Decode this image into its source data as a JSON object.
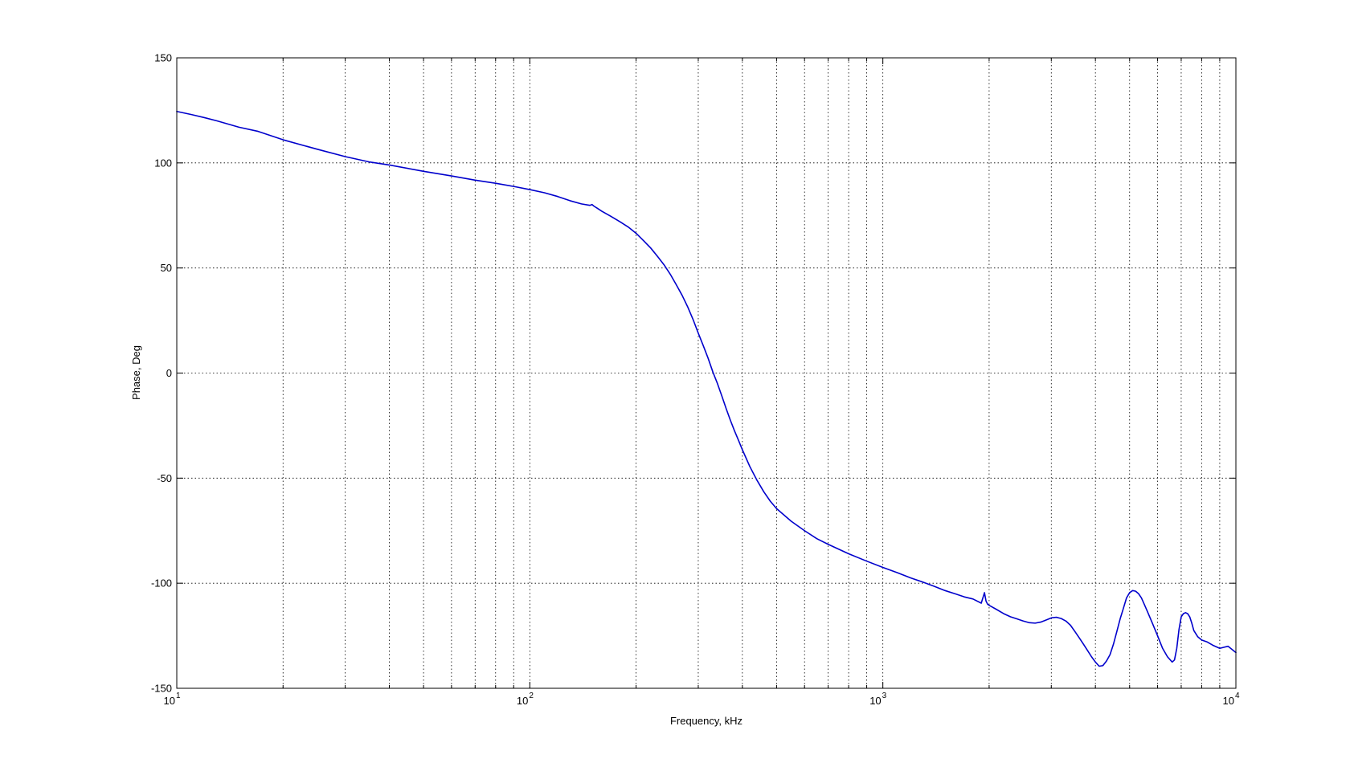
{
  "chart_data": {
    "type": "line",
    "title": "",
    "xlabel": "Frequency, kHz",
    "ylabel": "Phase, Deg",
    "xscale": "log",
    "xlim": [
      10,
      10000
    ],
    "ylim": [
      -150,
      150
    ],
    "grid": true,
    "grid_style": "dotted",
    "legend": "none",
    "x_ticks": [
      {
        "value": 10,
        "base": "10",
        "exp": "1"
      },
      {
        "value": 100,
        "base": "10",
        "exp": "2"
      },
      {
        "value": 1000,
        "base": "10",
        "exp": "3"
      },
      {
        "value": 10000,
        "base": "10",
        "exp": "4"
      }
    ],
    "y_ticks": [
      {
        "value": 150,
        "label": "150"
      },
      {
        "value": 100,
        "label": "100"
      },
      {
        "value": 50,
        "label": "50"
      },
      {
        "value": 0,
        "label": "0"
      },
      {
        "value": -50,
        "label": "-50"
      },
      {
        "value": -100,
        "label": "-100"
      },
      {
        "value": -150,
        "label": "-150"
      }
    ],
    "series": [
      {
        "color": "#0000cc",
        "x": [
          10,
          11,
          12,
          13,
          15,
          17,
          20,
          25,
          30,
          35,
          40,
          50,
          60,
          70,
          80,
          90,
          100,
          110,
          120,
          130,
          140,
          148,
          150,
          152,
          155,
          160,
          170,
          180,
          190,
          200,
          210,
          220,
          230,
          240,
          250,
          260,
          270,
          280,
          290,
          300,
          310,
          320,
          330,
          340,
          350,
          360,
          370,
          380,
          390,
          400,
          420,
          440,
          460,
          480,
          500,
          550,
          600,
          650,
          700,
          800,
          900,
          1000,
          1100,
          1200,
          1300,
          1400,
          1500,
          1600,
          1700,
          1800,
          1900,
          1940,
          1960,
          1980,
          2000,
          2100,
          2200,
          2300,
          2400,
          2500,
          2600,
          2700,
          2800,
          2900,
          3000,
          3100,
          3200,
          3300,
          3400,
          3500,
          3600,
          3700,
          3800,
          3900,
          4000,
          4100,
          4200,
          4300,
          4400,
          4500,
          4600,
          4700,
          4800,
          4900,
          5000,
          5100,
          5200,
          5300,
          5400,
          5500,
          5600,
          5800,
          6000,
          6200,
          6400,
          6600,
          6700,
          6800,
          6900,
          7000,
          7100,
          7200,
          7300,
          7400,
          7500,
          7600,
          7800,
          8000,
          8300,
          8600,
          9000,
          9500,
          10000
        ],
        "y": [
          124.5,
          123,
          121.5,
          120,
          117,
          115,
          111,
          106.5,
          103,
          100.5,
          99,
          96,
          93.8,
          91.8,
          90.3,
          88.8,
          87.3,
          85.8,
          84,
          82,
          80.5,
          79.8,
          80.2,
          79.4,
          78.5,
          77,
          74.5,
          72,
          69.5,
          66.5,
          63,
          59.5,
          55.5,
          51.5,
          47,
          42,
          37,
          31.5,
          25.5,
          19,
          13,
          7,
          0.5,
          -5,
          -11,
          -17,
          -22.5,
          -27.5,
          -32,
          -36.5,
          -44.5,
          -51,
          -56.5,
          -61,
          -64.5,
          -70.5,
          -75,
          -78.8,
          -81.5,
          -86,
          -89.5,
          -92.5,
          -95,
          -97.5,
          -99.5,
          -101.5,
          -103.5,
          -105,
          -106.5,
          -107.5,
          -109.5,
          -104.5,
          -108.5,
          -110,
          -110.5,
          -112.5,
          -114.5,
          -116,
          -117,
          -118,
          -118.8,
          -119,
          -118.5,
          -117.5,
          -116.5,
          -116.2,
          -116.8,
          -118,
          -120,
          -123,
          -126,
          -129,
          -132,
          -135,
          -137.5,
          -139.5,
          -139.2,
          -137,
          -134,
          -129,
          -123,
          -117,
          -112,
          -107,
          -104.5,
          -103.5,
          -103.8,
          -105,
          -107,
          -110,
          -113,
          -119,
          -125,
          -131,
          -135,
          -137.5,
          -136.5,
          -131,
          -122,
          -116,
          -114.5,
          -114,
          -114.5,
          -116,
          -119,
          -122.5,
          -125.5,
          -127,
          -128,
          -129.5,
          -131,
          -130,
          -133
        ]
      }
    ]
  }
}
